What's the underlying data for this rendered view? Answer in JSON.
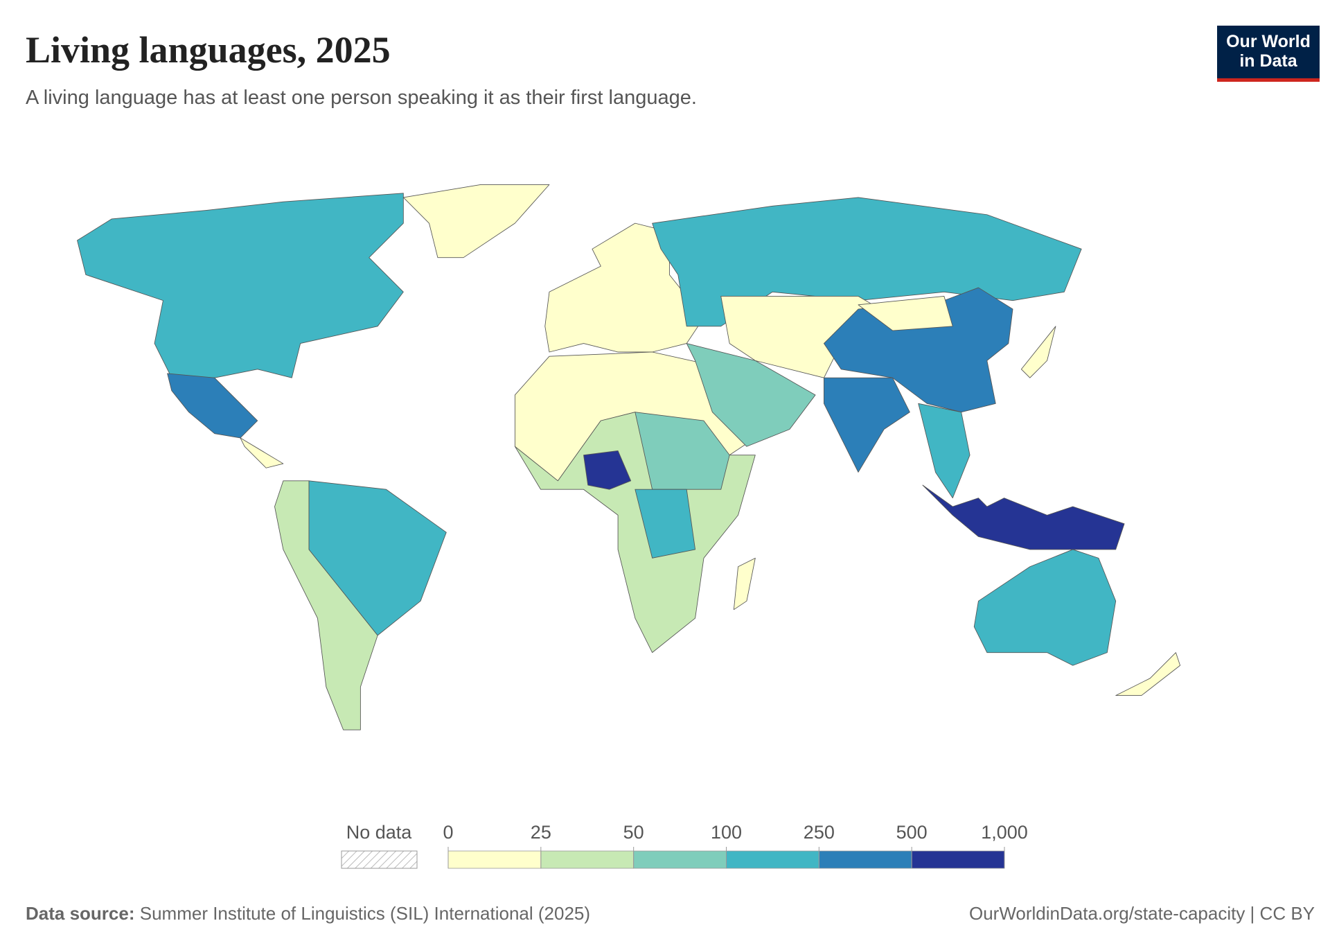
{
  "chart_data": {
    "type": "map",
    "title": "Living languages, 2025",
    "subtitle": "A living language has at least one person speaking it as their first language.",
    "logo": [
      "Our World",
      "in Data"
    ],
    "legend": {
      "no_data_label": "No data",
      "bins": [
        0,
        25,
        50,
        100,
        250,
        500,
        {
          "value": 1000,
          "label": "1,000"
        }
      ],
      "colors": [
        "#ffffcc",
        "#c7e9b4",
        "#7fcdbb",
        "#41b6c4",
        "#2c7fb8",
        "#253494"
      ]
    },
    "source_label": "Data source:",
    "source": "Summer Institute of Linguistics (SIL) International (2025)",
    "url": "OurWorldinData.org/state-capacity | CC BY"
  }
}
